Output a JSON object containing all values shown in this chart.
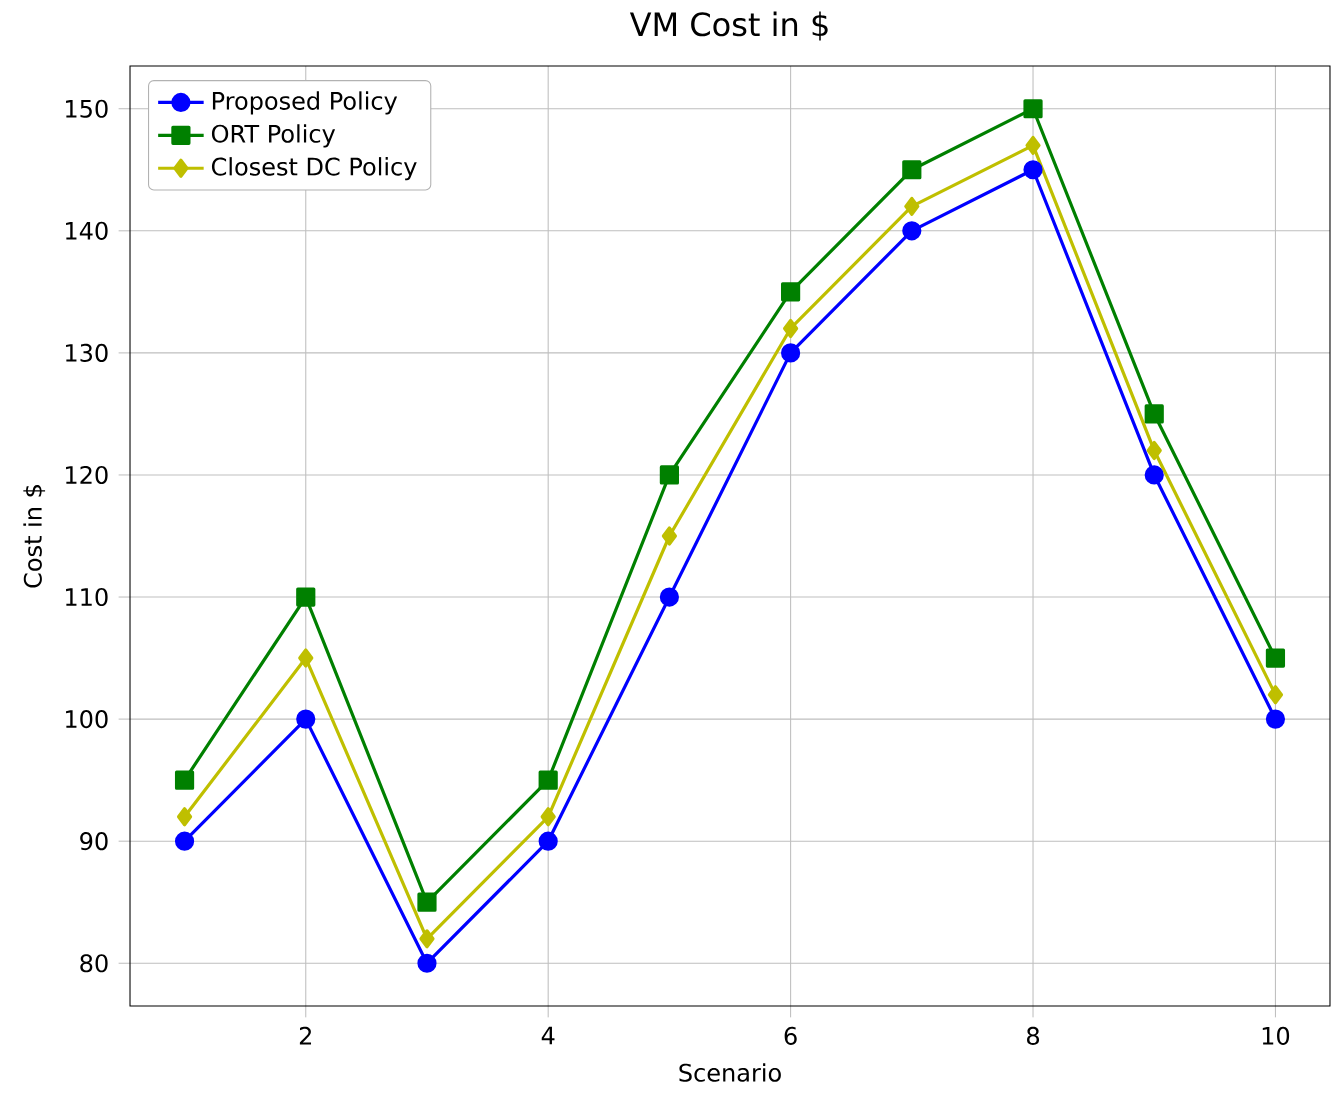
{
  "chart_data": {
    "type": "line",
    "title": "VM Cost in $",
    "xlabel": "Scenario",
    "ylabel": "Cost in $",
    "x": [
      1,
      2,
      3,
      4,
      5,
      6,
      7,
      8,
      9,
      10
    ],
    "series": [
      {
        "name": "Proposed Policy",
        "color": "#0000ff",
        "marker": "circle",
        "values": [
          90,
          100,
          80,
          90,
          110,
          130,
          140,
          145,
          120,
          100
        ]
      },
      {
        "name": "ORT Policy",
        "color": "#008000",
        "marker": "square",
        "values": [
          95,
          110,
          85,
          95,
          120,
          135,
          145,
          150,
          125,
          105
        ]
      },
      {
        "name": "Closest DC Policy",
        "color": "#bfbf00",
        "marker": "diamond",
        "values": [
          92,
          105,
          82,
          92,
          115,
          132,
          142,
          147,
          122,
          102
        ]
      }
    ],
    "xlim": [
      0.55,
      10.45
    ],
    "ylim": [
      76.5,
      153.5
    ],
    "xticks": [
      2,
      4,
      6,
      8,
      10
    ],
    "yticks": [
      80,
      90,
      100,
      110,
      120,
      130,
      140,
      150
    ],
    "grid": true,
    "legend": "top left",
    "line_style": "solid"
  }
}
